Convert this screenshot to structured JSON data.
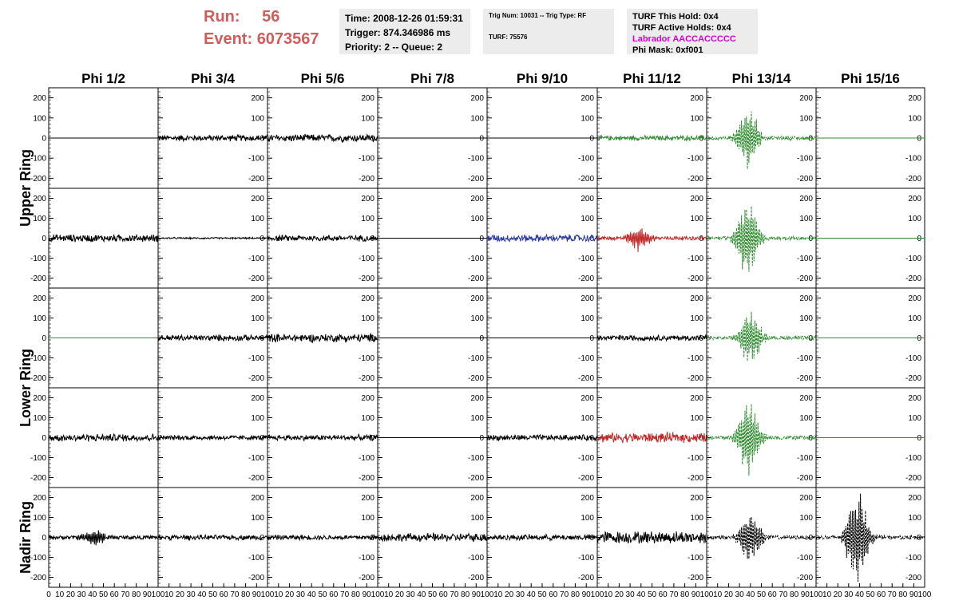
{
  "header": {
    "run_label": "Run:",
    "run_value": "56",
    "event_label": "Event:",
    "event_value": "6073567",
    "time_box": {
      "time": "Time: 2008-12-26 01:59:31",
      "trigger": "Trigger: 874.346986 ms",
      "priority": "Priority: 2 -- Queue: 2"
    },
    "trig_box": {
      "trig": "Trig Num: 10031 -- Trig Type: RF",
      "turf": "TURF: 75576"
    },
    "turf_box": {
      "this_hold": "TURF This Hold: 0x4",
      "active_holds": "TURF Active Holds: 0x4",
      "labrador": "Labrador AACCACCCCC",
      "phi_mask": "Phi Mask: 0xf001"
    }
  },
  "columns": [
    "Phi 1/2",
    "Phi 3/4",
    "Phi 5/6",
    "Phi 7/8",
    "Phi 9/10",
    "Phi 11/12",
    "Phi 13/14",
    "Phi 15/16"
  ],
  "rows": [
    "Upper Ring",
    "Upper Ring",
    "Lower Ring",
    "Lower Ring",
    "Nadir Ring"
  ],
  "row_group_labels": [
    {
      "text": "Upper Ring",
      "row": 0,
      "span": 2
    },
    {
      "text": "Lower Ring",
      "row": 2,
      "span": 2
    },
    {
      "text": "Nadir Ring",
      "row": 4,
      "span": 1
    }
  ],
  "y_ticks": [
    "200",
    "100",
    "0",
    "-100",
    "-200"
  ],
  "x_ticks": [
    "0",
    "10",
    "20",
    "30",
    "40",
    "50",
    "60",
    "70",
    "80",
    "90",
    "100"
  ],
  "colors": {
    "black": "#000000",
    "green": "#2e8b2e",
    "blue": "#2a3aa0",
    "red": "#c02a2a",
    "run_text": "#d15c5c",
    "labrador": "#d800d8"
  },
  "chart_data": {
    "type": "line",
    "title": "",
    "xlabel": "",
    "ylabel": "",
    "xlim": [
      0,
      100
    ],
    "ylim": [
      -250,
      250
    ],
    "panels": [
      [
        {
          "col": "Phi 1/2",
          "color": "black",
          "style": "flat",
          "amplitude": 0
        },
        {
          "col": "Phi 3/4",
          "color": "black",
          "style": "noise",
          "amplitude": 15
        },
        {
          "col": "Phi 5/6",
          "color": "black",
          "style": "noise",
          "amplitude": 18
        },
        {
          "col": "Phi 7/8",
          "color": "black",
          "style": "flat",
          "amplitude": 0
        },
        {
          "col": "Phi 9/10",
          "color": "black",
          "style": "flat",
          "amplitude": 0
        },
        {
          "col": "Phi 11/12",
          "color": "green",
          "style": "noise",
          "amplitude": 12
        },
        {
          "col": "Phi 13/14",
          "color": "green",
          "style": "pulse",
          "amplitude": 140,
          "peak_x": 38
        },
        {
          "col": "Phi 15/16",
          "color": "green",
          "style": "flat",
          "amplitude": 0
        }
      ],
      [
        {
          "col": "Phi 1/2",
          "color": "black",
          "style": "noise",
          "amplitude": 18
        },
        {
          "col": "Phi 3/4",
          "color": "black",
          "style": "noise",
          "amplitude": 4
        },
        {
          "col": "Phi 5/6",
          "color": "black",
          "style": "noise",
          "amplitude": 15
        },
        {
          "col": "Phi 7/8",
          "color": "black",
          "style": "flat",
          "amplitude": 0
        },
        {
          "col": "Phi 9/10",
          "color": "blue",
          "style": "noise",
          "amplitude": 18
        },
        {
          "col": "Phi 11/12",
          "color": "red",
          "style": "pulse",
          "amplitude": 60,
          "peak_x": 38
        },
        {
          "col": "Phi 13/14",
          "color": "green",
          "style": "pulse",
          "amplitude": 190,
          "peak_x": 37
        },
        {
          "col": "Phi 15/16",
          "color": "green",
          "style": "flat",
          "amplitude": 0
        }
      ],
      [
        {
          "col": "Phi 1/2",
          "color": "green",
          "style": "flat",
          "amplitude": 0
        },
        {
          "col": "Phi 3/4",
          "color": "black",
          "style": "noise",
          "amplitude": 15
        },
        {
          "col": "Phi 5/6",
          "color": "black",
          "style": "noise",
          "amplitude": 20
        },
        {
          "col": "Phi 7/8",
          "color": "black",
          "style": "flat",
          "amplitude": 0
        },
        {
          "col": "Phi 9/10",
          "color": "black",
          "style": "flat",
          "amplitude": 0
        },
        {
          "col": "Phi 11/12",
          "color": "black",
          "style": "noise",
          "amplitude": 14
        },
        {
          "col": "Phi 13/14",
          "color": "green",
          "style": "pulse",
          "amplitude": 130,
          "peak_x": 40
        },
        {
          "col": "Phi 15/16",
          "color": "green",
          "style": "flat",
          "amplitude": 0
        }
      ],
      [
        {
          "col": "Phi 1/2",
          "color": "black",
          "style": "noise",
          "amplitude": 18
        },
        {
          "col": "Phi 3/4",
          "color": "black",
          "style": "noise",
          "amplitude": 12
        },
        {
          "col": "Phi 5/6",
          "color": "black",
          "style": "noise",
          "amplitude": 14
        },
        {
          "col": "Phi 7/8",
          "color": "black",
          "style": "flat",
          "amplitude": 0
        },
        {
          "col": "Phi 9/10",
          "color": "black",
          "style": "noise",
          "amplitude": 14
        },
        {
          "col": "Phi 11/12",
          "color": "red",
          "style": "noise",
          "amplitude": 24
        },
        {
          "col": "Phi 13/14",
          "color": "green",
          "style": "pulse",
          "amplitude": 180,
          "peak_x": 38
        },
        {
          "col": "Phi 15/16",
          "color": "green",
          "style": "flat",
          "amplitude": 0
        }
      ],
      [
        {
          "col": "Phi 1/2",
          "color": "black",
          "style": "pulse",
          "amplitude": 40,
          "peak_x": 42
        },
        {
          "col": "Phi 3/4",
          "color": "black",
          "style": "noise",
          "amplitude": 12
        },
        {
          "col": "Phi 5/6",
          "color": "black",
          "style": "noise",
          "amplitude": 12
        },
        {
          "col": "Phi 7/8",
          "color": "black",
          "style": "noise",
          "amplitude": 20
        },
        {
          "col": "Phi 9/10",
          "color": "black",
          "style": "noise",
          "amplitude": 14
        },
        {
          "col": "Phi 11/12",
          "color": "black",
          "style": "noise",
          "amplitude": 30
        },
        {
          "col": "Phi 13/14",
          "color": "black",
          "style": "pulse",
          "amplitude": 120,
          "peak_x": 40
        },
        {
          "col": "Phi 15/16",
          "color": "black",
          "style": "pulse",
          "amplitude": 230,
          "peak_x": 38
        }
      ]
    ]
  }
}
